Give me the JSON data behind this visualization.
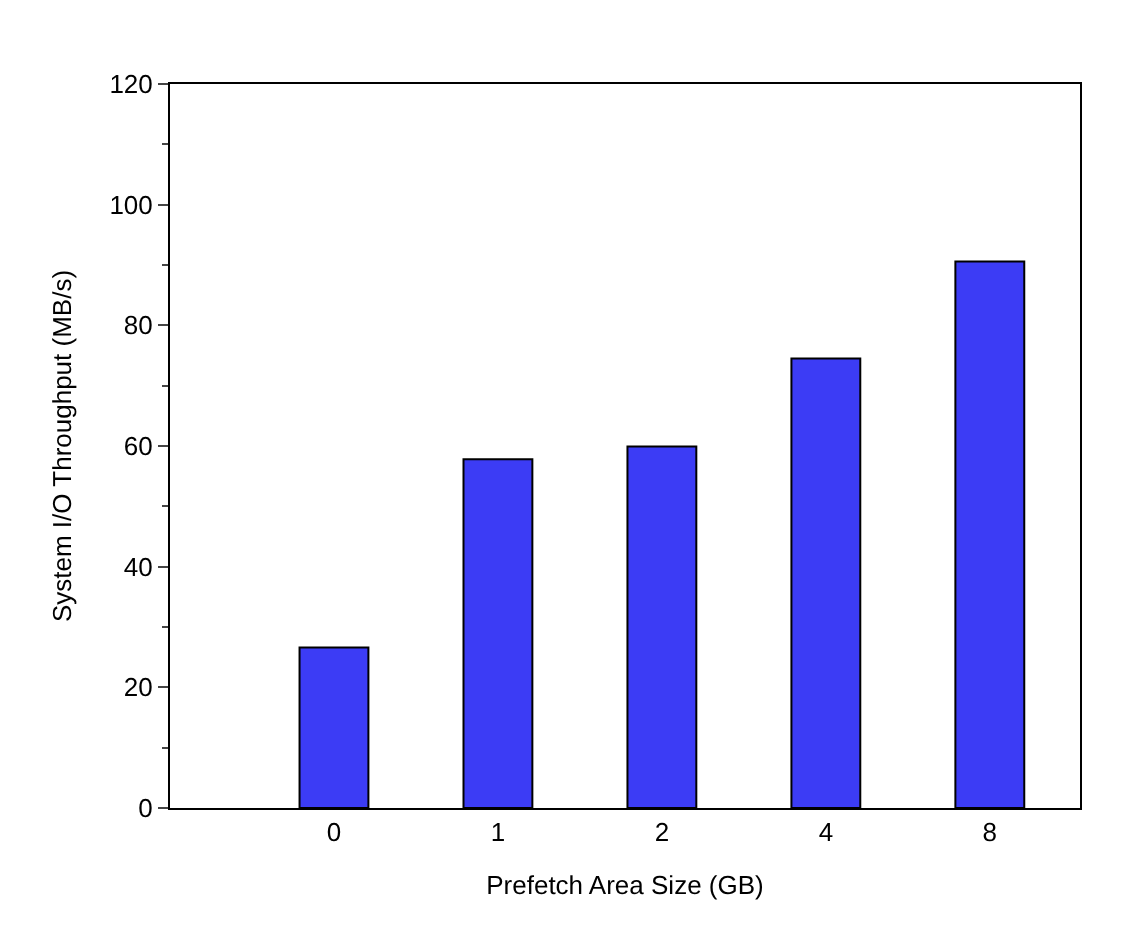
{
  "chart_data": {
    "type": "bar",
    "xlabel": "Prefetch Area Size (GB)",
    "ylabel": "System I/O Throughput (MB/s)",
    "categories": [
      "0",
      "1",
      "2",
      "4",
      "8"
    ],
    "values": [
      26.6,
      57.8,
      59.9,
      74.5,
      90.6
    ],
    "color": "#3c3cf5",
    "ylim": [
      0,
      120
    ],
    "yticks": [
      0,
      20,
      40,
      60,
      80,
      100,
      120
    ]
  }
}
